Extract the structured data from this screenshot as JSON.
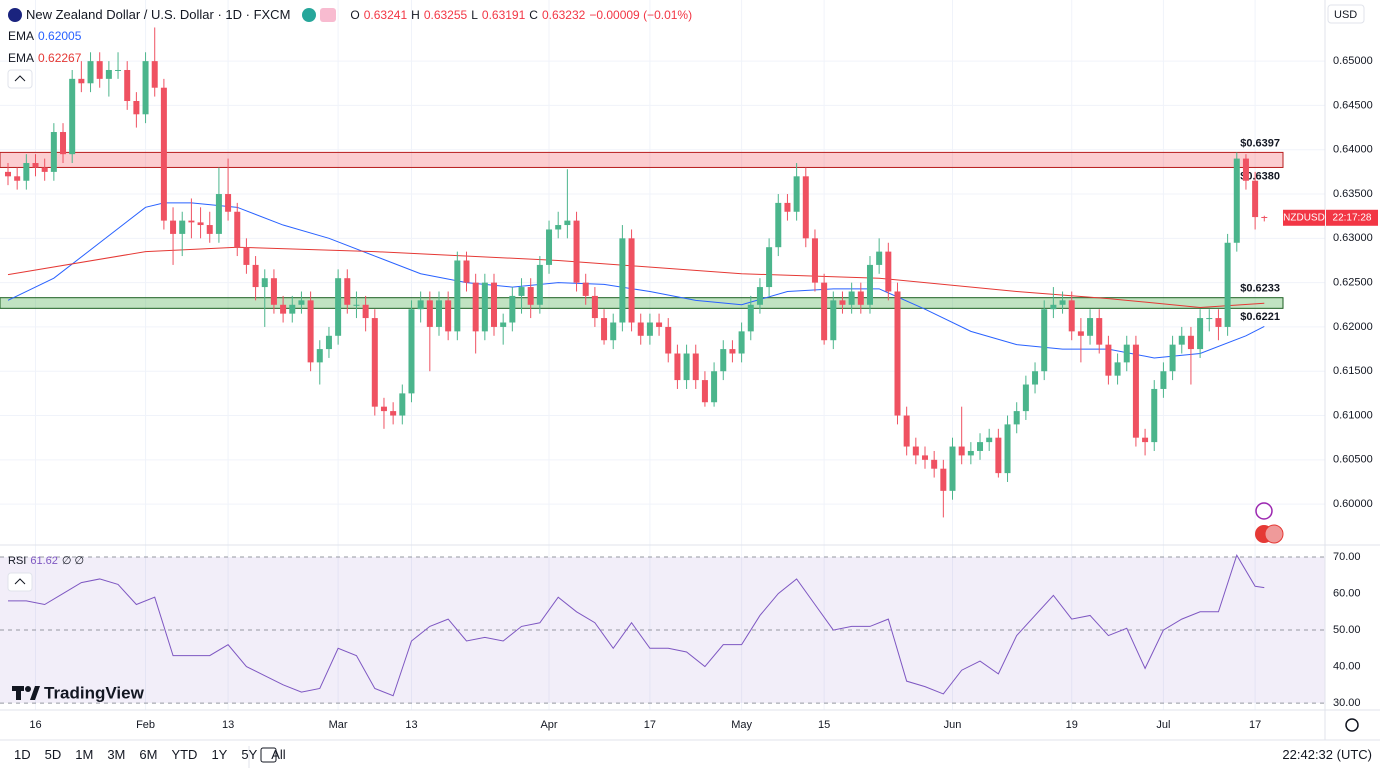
{
  "header": {
    "symbol": "New Zealand Dollar / U.S. Dollar · 1D · FXCM",
    "ohlc_keys": [
      "O",
      "H",
      "L",
      "C"
    ],
    "change": "−0.00009 (−0.01%)"
  },
  "brand": "TradingView",
  "toolbar": {
    "ranges": [
      "1D",
      "5D",
      "1M",
      "3M",
      "6M",
      "YTD",
      "1Y",
      "5Y",
      "All"
    ],
    "clock": "22:42:32 (UTC)"
  },
  "chart_data": {
    "type": "candlestick",
    "currency": "USD",
    "ylim": [
      0.5955,
      0.6569
    ],
    "yticks": [
      {
        "value": 0.6,
        "label": "0.60000"
      },
      {
        "value": 0.605,
        "label": "0.60500"
      },
      {
        "value": 0.61,
        "label": "0.61000"
      },
      {
        "value": 0.615,
        "label": "0.61500"
      },
      {
        "value": 0.62,
        "label": "0.62000"
      },
      {
        "value": 0.625,
        "label": "0.62500"
      },
      {
        "value": 0.63,
        "label": "0.63000"
      },
      {
        "value": 0.635,
        "label": "0.63500"
      },
      {
        "value": 0.64,
        "label": "0.64000"
      },
      {
        "value": 0.645,
        "label": "0.64500"
      },
      {
        "value": 0.65,
        "label": "0.65000"
      }
    ],
    "xticks": [
      {
        "value": 3,
        "label": "16"
      },
      {
        "value": 15,
        "label": "Feb"
      },
      {
        "value": 24,
        "label": "13"
      },
      {
        "value": 36,
        "label": "Mar"
      },
      {
        "value": 44,
        "label": "13"
      },
      {
        "value": 59,
        "label": "Apr"
      },
      {
        "value": 70,
        "label": "17"
      },
      {
        "value": 80,
        "label": "May"
      },
      {
        "value": 89,
        "label": "15"
      },
      {
        "value": 103,
        "label": "Jun"
      },
      {
        "value": 116,
        "label": "19"
      },
      {
        "value": 126,
        "label": "Jul"
      },
      {
        "value": 136,
        "label": "17"
      }
    ],
    "up_color": "#4bb58c",
    "down_color": "#ef5161",
    "ohlc": [
      [
        0.6375,
        0.6385,
        0.636,
        0.637
      ],
      [
        0.637,
        0.638,
        0.6355,
        0.6365
      ],
      [
        0.6365,
        0.6395,
        0.6355,
        0.6385
      ],
      [
        0.6385,
        0.6395,
        0.637,
        0.638
      ],
      [
        0.638,
        0.639,
        0.6365,
        0.6375
      ],
      [
        0.6375,
        0.643,
        0.6365,
        0.642
      ],
      [
        0.642,
        0.643,
        0.6385,
        0.6395
      ],
      [
        0.6395,
        0.649,
        0.6385,
        0.648
      ],
      [
        0.648,
        0.65,
        0.6465,
        0.6475
      ],
      [
        0.6475,
        0.651,
        0.6465,
        0.65
      ],
      [
        0.65,
        0.651,
        0.647,
        0.648
      ],
      [
        0.648,
        0.65,
        0.646,
        0.649
      ],
      [
        0.649,
        0.651,
        0.648,
        0.649
      ],
      [
        0.649,
        0.65,
        0.6445,
        0.6455
      ],
      [
        0.6455,
        0.6465,
        0.6425,
        0.644
      ],
      [
        0.644,
        0.651,
        0.643,
        0.65
      ],
      [
        0.65,
        0.6538,
        0.646,
        0.647
      ],
      [
        0.647,
        0.648,
        0.631,
        0.632
      ],
      [
        0.632,
        0.6335,
        0.627,
        0.6305
      ],
      [
        0.6305,
        0.633,
        0.628,
        0.632
      ],
      [
        0.632,
        0.6345,
        0.63,
        0.6318
      ],
      [
        0.6318,
        0.6335,
        0.63,
        0.6315
      ],
      [
        0.6315,
        0.633,
        0.6295,
        0.6305
      ],
      [
        0.6305,
        0.638,
        0.6295,
        0.635
      ],
      [
        0.635,
        0.639,
        0.632,
        0.633
      ],
      [
        0.633,
        0.634,
        0.628,
        0.629
      ],
      [
        0.629,
        0.63,
        0.626,
        0.627
      ],
      [
        0.627,
        0.628,
        0.623,
        0.6245
      ],
      [
        0.6245,
        0.6265,
        0.62,
        0.6255
      ],
      [
        0.6255,
        0.6265,
        0.6215,
        0.6225
      ],
      [
        0.6225,
        0.6235,
        0.6205,
        0.6215
      ],
      [
        0.6215,
        0.6235,
        0.6205,
        0.6225
      ],
      [
        0.6225,
        0.624,
        0.6215,
        0.623
      ],
      [
        0.623,
        0.624,
        0.615,
        0.616
      ],
      [
        0.616,
        0.6185,
        0.6135,
        0.6175
      ],
      [
        0.6175,
        0.62,
        0.6165,
        0.619
      ],
      [
        0.619,
        0.6265,
        0.618,
        0.6255
      ],
      [
        0.6255,
        0.6265,
        0.6215,
        0.6225
      ],
      [
        0.6225,
        0.624,
        0.621,
        0.6225
      ],
      [
        0.6225,
        0.6235,
        0.6195,
        0.621
      ],
      [
        0.621,
        0.622,
        0.61,
        0.611
      ],
      [
        0.611,
        0.612,
        0.6085,
        0.6105
      ],
      [
        0.6105,
        0.6115,
        0.609,
        0.61
      ],
      [
        0.61,
        0.6135,
        0.609,
        0.6125
      ],
      [
        0.6125,
        0.623,
        0.6115,
        0.622
      ],
      [
        0.622,
        0.624,
        0.6205,
        0.623
      ],
      [
        0.623,
        0.624,
        0.615,
        0.62
      ],
      [
        0.62,
        0.624,
        0.619,
        0.623
      ],
      [
        0.623,
        0.624,
        0.6185,
        0.6195
      ],
      [
        0.6195,
        0.6285,
        0.6185,
        0.6275
      ],
      [
        0.6275,
        0.6285,
        0.624,
        0.625
      ],
      [
        0.625,
        0.626,
        0.617,
        0.6195
      ],
      [
        0.6195,
        0.626,
        0.6185,
        0.625
      ],
      [
        0.625,
        0.626,
        0.619,
        0.62
      ],
      [
        0.62,
        0.6215,
        0.618,
        0.6205
      ],
      [
        0.6205,
        0.6245,
        0.6195,
        0.6235
      ],
      [
        0.6235,
        0.6255,
        0.6215,
        0.6245
      ],
      [
        0.6245,
        0.6255,
        0.621,
        0.6225
      ],
      [
        0.6225,
        0.628,
        0.6215,
        0.627
      ],
      [
        0.627,
        0.632,
        0.626,
        0.631
      ],
      [
        0.631,
        0.633,
        0.63,
        0.6315
      ],
      [
        0.6315,
        0.6378,
        0.63,
        0.632
      ],
      [
        0.632,
        0.633,
        0.624,
        0.625
      ],
      [
        0.625,
        0.626,
        0.6225,
        0.6235
      ],
      [
        0.6235,
        0.6245,
        0.62,
        0.621
      ],
      [
        0.621,
        0.622,
        0.618,
        0.6185
      ],
      [
        0.6185,
        0.6215,
        0.6175,
        0.6205
      ],
      [
        0.6205,
        0.6315,
        0.6195,
        0.63
      ],
      [
        0.63,
        0.631,
        0.6195,
        0.6205
      ],
      [
        0.6205,
        0.6215,
        0.618,
        0.619
      ],
      [
        0.619,
        0.6215,
        0.618,
        0.6205
      ],
      [
        0.6205,
        0.6215,
        0.619,
        0.62
      ],
      [
        0.62,
        0.621,
        0.616,
        0.617
      ],
      [
        0.617,
        0.618,
        0.613,
        0.614
      ],
      [
        0.614,
        0.618,
        0.613,
        0.617
      ],
      [
        0.617,
        0.618,
        0.613,
        0.614
      ],
      [
        0.614,
        0.615,
        0.611,
        0.6115
      ],
      [
        0.6115,
        0.616,
        0.611,
        0.615
      ],
      [
        0.615,
        0.6185,
        0.614,
        0.6175
      ],
      [
        0.6175,
        0.6185,
        0.616,
        0.617
      ],
      [
        0.617,
        0.6205,
        0.616,
        0.6195
      ],
      [
        0.6195,
        0.6235,
        0.6185,
        0.6225
      ],
      [
        0.6225,
        0.6255,
        0.6215,
        0.6245
      ],
      [
        0.6245,
        0.63,
        0.6235,
        0.629
      ],
      [
        0.629,
        0.635,
        0.628,
        0.634
      ],
      [
        0.634,
        0.635,
        0.632,
        0.633
      ],
      [
        0.633,
        0.6385,
        0.632,
        0.637
      ],
      [
        0.637,
        0.638,
        0.629,
        0.63
      ],
      [
        0.63,
        0.631,
        0.624,
        0.625
      ],
      [
        0.625,
        0.626,
        0.618,
        0.6185
      ],
      [
        0.6185,
        0.624,
        0.6175,
        0.623
      ],
      [
        0.623,
        0.624,
        0.6215,
        0.6225
      ],
      [
        0.6225,
        0.625,
        0.6215,
        0.624
      ],
      [
        0.624,
        0.625,
        0.6215,
        0.6225
      ],
      [
        0.6225,
        0.628,
        0.6215,
        0.627
      ],
      [
        0.627,
        0.63,
        0.626,
        0.6285
      ],
      [
        0.6285,
        0.6295,
        0.623,
        0.624
      ],
      [
        0.624,
        0.625,
        0.609,
        0.61
      ],
      [
        0.61,
        0.611,
        0.6055,
        0.6065
      ],
      [
        0.6065,
        0.6075,
        0.6045,
        0.6055
      ],
      [
        0.6055,
        0.6065,
        0.604,
        0.605
      ],
      [
        0.605,
        0.606,
        0.603,
        0.604
      ],
      [
        0.604,
        0.605,
        0.5985,
        0.6015
      ],
      [
        0.6015,
        0.6075,
        0.6005,
        0.6065
      ],
      [
        0.6065,
        0.611,
        0.6045,
        0.6055
      ],
      [
        0.6055,
        0.607,
        0.6045,
        0.606
      ],
      [
        0.606,
        0.608,
        0.605,
        0.607
      ],
      [
        0.607,
        0.6085,
        0.606,
        0.6075
      ],
      [
        0.6075,
        0.6085,
        0.603,
        0.6035
      ],
      [
        0.6035,
        0.61,
        0.6025,
        0.609
      ],
      [
        0.609,
        0.6115,
        0.608,
        0.6105
      ],
      [
        0.6105,
        0.6145,
        0.6095,
        0.6135
      ],
      [
        0.6135,
        0.616,
        0.6125,
        0.615
      ],
      [
        0.615,
        0.623,
        0.614,
        0.622
      ],
      [
        0.622,
        0.6245,
        0.621,
        0.6225
      ],
      [
        0.6225,
        0.624,
        0.6215,
        0.623
      ],
      [
        0.623,
        0.624,
        0.6185,
        0.6195
      ],
      [
        0.6195,
        0.621,
        0.616,
        0.619
      ],
      [
        0.619,
        0.622,
        0.618,
        0.621
      ],
      [
        0.621,
        0.622,
        0.617,
        0.618
      ],
      [
        0.618,
        0.619,
        0.6135,
        0.6145
      ],
      [
        0.6145,
        0.617,
        0.6135,
        0.616
      ],
      [
        0.616,
        0.619,
        0.615,
        0.618
      ],
      [
        0.618,
        0.619,
        0.6065,
        0.6075
      ],
      [
        0.6075,
        0.6085,
        0.6055,
        0.607
      ],
      [
        0.607,
        0.614,
        0.606,
        0.613
      ],
      [
        0.613,
        0.616,
        0.612,
        0.615
      ],
      [
        0.615,
        0.619,
        0.614,
        0.618
      ],
      [
        0.618,
        0.62,
        0.617,
        0.619
      ],
      [
        0.619,
        0.62,
        0.6135,
        0.6175
      ],
      [
        0.6175,
        0.622,
        0.6165,
        0.621
      ],
      [
        0.621,
        0.622,
        0.6195,
        0.621
      ],
      [
        0.621,
        0.622,
        0.6185,
        0.62
      ],
      [
        0.62,
        0.6305,
        0.619,
        0.6295
      ],
      [
        0.6295,
        0.6397,
        0.6285,
        0.639
      ],
      [
        0.639,
        0.6395,
        0.6355,
        0.6365
      ],
      [
        0.6365,
        0.6375,
        0.631,
        0.6324
      ],
      [
        0.63241,
        0.63255,
        0.63191,
        0.63232
      ]
    ],
    "ema": [
      {
        "name": "EMA",
        "color": "#2962ff",
        "x": [
          0,
          5,
          10,
          15,
          17,
          20,
          25,
          30,
          35,
          40,
          45,
          50,
          55,
          60,
          65,
          70,
          75,
          80,
          85,
          90,
          95,
          100,
          105,
          110,
          115,
          120,
          125,
          130,
          135,
          137
        ],
        "values": [
          0.623,
          0.6255,
          0.6295,
          0.6335,
          0.634,
          0.634,
          0.6335,
          0.6315,
          0.63,
          0.628,
          0.626,
          0.625,
          0.6245,
          0.625,
          0.6248,
          0.624,
          0.623,
          0.6225,
          0.624,
          0.6243,
          0.6243,
          0.622,
          0.6195,
          0.618,
          0.6175,
          0.6175,
          0.6165,
          0.617,
          0.619,
          0.62005
        ]
      },
      {
        "name": "EMA",
        "color": "#e53935",
        "x": [
          0,
          15,
          25,
          40,
          60,
          80,
          95,
          110,
          120,
          130,
          137
        ],
        "values": [
          0.6259,
          0.6285,
          0.629,
          0.6285,
          0.6275,
          0.626,
          0.6255,
          0.624,
          0.6232,
          0.6222,
          0.62267
        ]
      }
    ],
    "zones": [
      {
        "low": 0.638,
        "high": 0.6397,
        "high_label": "$0.6397",
        "low_label": "$0.6380",
        "fill": "rgba(242,54,69,0.25)",
        "stroke": "#b71c1c"
      },
      {
        "low": 0.6221,
        "high": 0.6233,
        "high_label": "$0.6233",
        "low_label": "$0.6221",
        "fill": "rgba(76,175,80,0.35)",
        "stroke": "#1b5e20"
      }
    ],
    "price_tag": {
      "symbol": "NZDUSD",
      "countdown": "22:17:28",
      "color": "#f23645"
    },
    "rsi": {
      "name": "RSI",
      "params": "∅ ∅",
      "color": "#7e57c2",
      "ylim": [
        28.1,
        73.3
      ],
      "yticks": [
        {
          "value": 70,
          "label": "70.00"
        },
        {
          "value": 60,
          "label": "60.00"
        },
        {
          "value": 50,
          "label": "50.00"
        },
        {
          "value": 40,
          "label": "40.00"
        },
        {
          "value": 30,
          "label": "30.00"
        }
      ],
      "band": [
        30,
        70
      ],
      "dashed": [
        70,
        50,
        30
      ],
      "x": [
        0,
        2,
        4,
        6,
        8,
        10,
        12,
        14,
        16,
        18,
        20,
        22,
        24,
        26,
        28,
        30,
        32,
        34,
        36,
        38,
        40,
        42,
        44,
        46,
        48,
        50,
        52,
        54,
        56,
        58,
        60,
        62,
        64,
        66,
        68,
        70,
        72,
        74,
        76,
        78,
        80,
        82,
        84,
        86,
        88,
        90,
        92,
        94,
        96,
        98,
        100,
        102,
        104,
        106,
        108,
        110,
        112,
        114,
        116,
        118,
        120,
        122,
        124,
        126,
        128,
        130,
        132,
        134,
        136,
        137
      ],
      "values": [
        58,
        58,
        57,
        60,
        63,
        64,
        62.5,
        57,
        59,
        43,
        43,
        43,
        46,
        40,
        37.5,
        35,
        33,
        34,
        45,
        43,
        34,
        32,
        47,
        51,
        53,
        47,
        48,
        47,
        51,
        52,
        59,
        55,
        52,
        45,
        52,
        45,
        45,
        44,
        40,
        46,
        46,
        54,
        60,
        64,
        57,
        50,
        51,
        51,
        53,
        36,
        34.5,
        32.5,
        39,
        41.5,
        38,
        48.5,
        54,
        59.5,
        53,
        54,
        48.5,
        50.5,
        39.5,
        50,
        53,
        55,
        55,
        70.5,
        62,
        61.62
      ]
    }
  }
}
